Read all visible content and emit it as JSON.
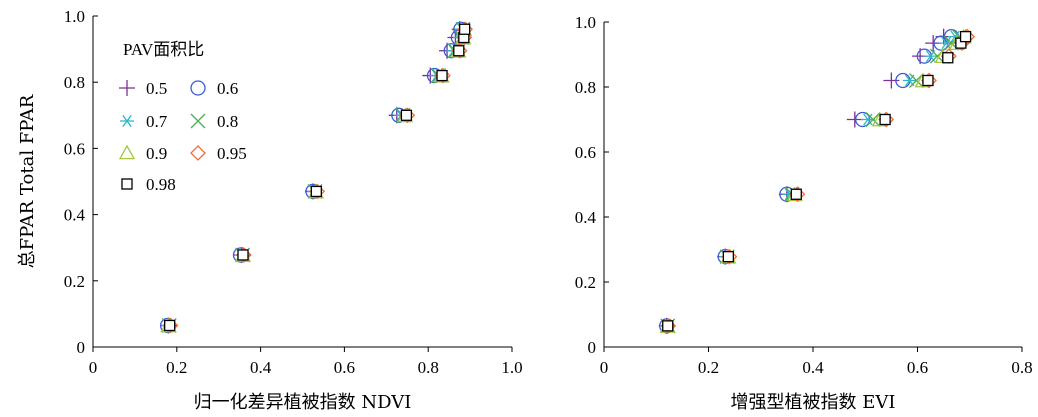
{
  "chart_data": [
    {
      "type": "scatter",
      "xlabel": "归一化差异植被指数 NDVI",
      "ylabel": "总FPAR Total FPAR",
      "xlim": [
        0,
        1.0
      ],
      "ylim": [
        0,
        1.0
      ],
      "xticks": [
        "0",
        "0.2",
        "0.4",
        "0.6",
        "0.8",
        "1.0"
      ],
      "yticks": [
        "0",
        "0.2",
        "0.4",
        "0.6",
        "0.8",
        "1.0"
      ],
      "grid": false,
      "legend": {
        "title": "PAV面积比",
        "placement": "upper-left"
      },
      "series": [
        {
          "name": "0.5",
          "marker": "plus",
          "color": "#7b3294",
          "points": [
            [
              0.18,
              0.065
            ],
            [
              0.355,
              0.278
            ],
            [
              0.525,
              0.47
            ],
            [
              0.725,
              0.7
            ],
            [
              0.805,
              0.82
            ],
            [
              0.845,
              0.895
            ],
            [
              0.865,
              0.935
            ],
            [
              0.875,
              0.96
            ]
          ]
        },
        {
          "name": "0.6",
          "marker": "circle",
          "color": "#3b5bd6",
          "points": [
            [
              0.178,
              0.065
            ],
            [
              0.352,
              0.278
            ],
            [
              0.525,
              0.47
            ],
            [
              0.73,
              0.7
            ],
            [
              0.815,
              0.82
            ],
            [
              0.855,
              0.895
            ],
            [
              0.872,
              0.935
            ],
            [
              0.878,
              0.96
            ]
          ]
        },
        {
          "name": "0.7",
          "marker": "star",
          "color": "#2ab7c9",
          "points": [
            [
              0.18,
              0.065
            ],
            [
              0.355,
              0.278
            ],
            [
              0.528,
              0.47
            ],
            [
              0.735,
              0.7
            ],
            [
              0.82,
              0.82
            ],
            [
              0.86,
              0.895
            ],
            [
              0.876,
              0.935
            ],
            [
              0.88,
              0.96
            ]
          ]
        },
        {
          "name": "0.8",
          "marker": "x",
          "color": "#4caf50",
          "points": [
            [
              0.182,
              0.065
            ],
            [
              0.357,
              0.278
            ],
            [
              0.53,
              0.47
            ],
            [
              0.74,
              0.7
            ],
            [
              0.825,
              0.82
            ],
            [
              0.865,
              0.895
            ],
            [
              0.88,
              0.935
            ],
            [
              0.883,
              0.96
            ]
          ]
        },
        {
          "name": "0.9",
          "marker": "triangle",
          "color": "#a4c639",
          "points": [
            [
              0.18,
              0.063
            ],
            [
              0.358,
              0.276
            ],
            [
              0.532,
              0.468
            ],
            [
              0.745,
              0.698
            ],
            [
              0.832,
              0.818
            ],
            [
              0.872,
              0.893
            ],
            [
              0.884,
              0.933
            ],
            [
              0.886,
              0.958
            ]
          ]
        },
        {
          "name": "0.95",
          "marker": "diamond",
          "color": "#f26b38",
          "points": [
            [
              0.185,
              0.065
            ],
            [
              0.36,
              0.278
            ],
            [
              0.535,
              0.47
            ],
            [
              0.75,
              0.7
            ],
            [
              0.835,
              0.82
            ],
            [
              0.875,
              0.895
            ],
            [
              0.886,
              0.935
            ],
            [
              0.888,
              0.96
            ]
          ]
        },
        {
          "name": "0.98",
          "marker": "square",
          "color": "#000000",
          "points": [
            [
              0.183,
              0.065
            ],
            [
              0.358,
              0.278
            ],
            [
              0.533,
              0.47
            ],
            [
              0.748,
              0.7
            ],
            [
              0.833,
              0.82
            ],
            [
              0.873,
              0.895
            ],
            [
              0.885,
              0.935
            ],
            [
              0.887,
              0.96
            ]
          ]
        }
      ]
    },
    {
      "type": "scatter",
      "xlabel": "增强型植被指数 EVI",
      "ylabel": "",
      "xlim": [
        0,
        0.8
      ],
      "ylim": [
        0,
        1.0
      ],
      "xticks": [
        "0",
        "0.2",
        "0.4",
        "0.6",
        "0.8"
      ],
      "yticks": [
        "0",
        "0.2",
        "0.4",
        "0.6",
        "0.8",
        "1.0"
      ],
      "grid": false,
      "series": [
        {
          "name": "0.5",
          "marker": "plus",
          "color": "#7b3294",
          "points": [
            [
              0.12,
              0.065
            ],
            [
              0.232,
              0.278
            ],
            [
              0.35,
              0.47
            ],
            [
              0.48,
              0.7
            ],
            [
              0.55,
              0.82
            ],
            [
              0.605,
              0.895
            ],
            [
              0.63,
              0.935
            ],
            [
              0.65,
              0.955
            ]
          ]
        },
        {
          "name": "0.6",
          "marker": "circle",
          "color": "#3b5bd6",
          "points": [
            [
              0.12,
              0.065
            ],
            [
              0.232,
              0.278
            ],
            [
              0.35,
              0.47
            ],
            [
              0.495,
              0.7
            ],
            [
              0.572,
              0.82
            ],
            [
              0.613,
              0.895
            ],
            [
              0.645,
              0.935
            ],
            [
              0.665,
              0.955
            ]
          ]
        },
        {
          "name": "0.7",
          "marker": "star",
          "color": "#2ab7c9",
          "points": [
            [
              0.121,
              0.065
            ],
            [
              0.234,
              0.278
            ],
            [
              0.355,
              0.47
            ],
            [
              0.505,
              0.7
            ],
            [
              0.585,
              0.82
            ],
            [
              0.625,
              0.895
            ],
            [
              0.655,
              0.935
            ],
            [
              0.672,
              0.955
            ]
          ]
        },
        {
          "name": "0.8",
          "marker": "x",
          "color": "#4caf50",
          "points": [
            [
              0.122,
              0.065
            ],
            [
              0.236,
              0.278
            ],
            [
              0.36,
              0.47
            ],
            [
              0.515,
              0.7
            ],
            [
              0.598,
              0.82
            ],
            [
              0.638,
              0.895
            ],
            [
              0.665,
              0.935
            ],
            [
              0.68,
              0.955
            ]
          ]
        },
        {
          "name": "0.9",
          "marker": "triangle",
          "color": "#a4c639",
          "points": [
            [
              0.122,
              0.063
            ],
            [
              0.238,
              0.276
            ],
            [
              0.365,
              0.468
            ],
            [
              0.528,
              0.698
            ],
            [
              0.61,
              0.818
            ],
            [
              0.648,
              0.893
            ],
            [
              0.675,
              0.933
            ],
            [
              0.688,
              0.953
            ]
          ]
        },
        {
          "name": "0.95",
          "marker": "diamond",
          "color": "#f26b38",
          "points": [
            [
              0.123,
              0.065
            ],
            [
              0.24,
              0.278
            ],
            [
              0.37,
              0.47
            ],
            [
              0.54,
              0.7
            ],
            [
              0.622,
              0.82
            ],
            [
              0.66,
              0.895
            ],
            [
              0.685,
              0.935
            ],
            [
              0.695,
              0.955
            ]
          ]
        },
        {
          "name": "0.98",
          "marker": "square",
          "color": "#000000",
          "points": [
            [
              0.122,
              0.065
            ],
            [
              0.238,
              0.278
            ],
            [
              0.368,
              0.47
            ],
            [
              0.538,
              0.7
            ],
            [
              0.62,
              0.82
            ],
            [
              0.658,
              0.89
            ],
            [
              0.683,
              0.935
            ],
            [
              0.692,
              0.955
            ]
          ]
        }
      ]
    }
  ]
}
